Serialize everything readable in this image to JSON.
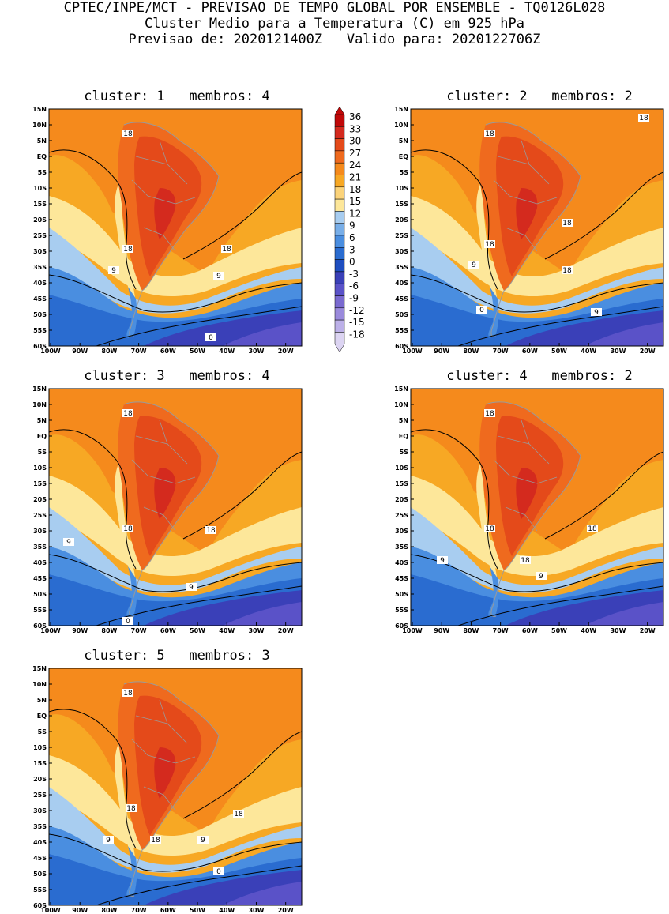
{
  "header": {
    "line1": "CPTEC/INPE/MCT - PREVISAO DE TEMPO GLOBAL POR ENSEMBLE - TQ0126L028",
    "line2": "Cluster Medio para a Temperatura (C) em 925 hPa",
    "line3": "Previsao de: 2020121400Z   Valido para: 2020122706Z"
  },
  "axes": {
    "lat_labels": [
      "15N",
      "10N",
      "5N",
      "EQ",
      "5S",
      "10S",
      "15S",
      "20S",
      "25S",
      "30S",
      "35S",
      "40S",
      "45S",
      "50S",
      "55S",
      "60S"
    ],
    "lon_labels": [
      "100W",
      "90W",
      "80W",
      "70W",
      "60W",
      "50W",
      "40W",
      "30W",
      "20W"
    ]
  },
  "colorbar": {
    "labels": [
      "36",
      "33",
      "30",
      "27",
      "24",
      "21",
      "18",
      "15",
      "12",
      "9",
      "6",
      "3",
      "0",
      "-3",
      "-6",
      "-9",
      "-12",
      "-15",
      "-18"
    ],
    "colors": [
      "#c00808",
      "#d42a1e",
      "#e44a1a",
      "#ef6a1e",
      "#f58a1c",
      "#f7a824",
      "#fbd37a",
      "#fde79a",
      "#a8cdf0",
      "#78aee8",
      "#4a8ee0",
      "#2a6cd0",
      "#1e4ec0",
      "#3a40b8",
      "#5a52c8",
      "#7a6ad0",
      "#9a8adc",
      "#bcb0e8",
      "#dcd4f2"
    ]
  },
  "panels": [
    {
      "title": "cluster: 1   membros: 4",
      "contours": [
        "18",
        "18",
        "18",
        "9",
        "9",
        "0"
      ]
    },
    {
      "title": "cluster: 2   membros: 2",
      "contours": [
        "18",
        "18",
        "18",
        "18",
        "18",
        "9",
        "0",
        "9"
      ]
    },
    {
      "title": "cluster: 3   membros: 4",
      "contours": [
        "18",
        "18",
        "18",
        "9",
        "9",
        "0"
      ]
    },
    {
      "title": "cluster: 4   membros: 2",
      "contours": [
        "18",
        "18",
        "18",
        "18",
        "9",
        "9"
      ]
    },
    {
      "title": "cluster: 5   membros: 3",
      "contours": [
        "18",
        "18",
        "18",
        "18",
        "9",
        "9",
        "0"
      ]
    }
  ]
}
